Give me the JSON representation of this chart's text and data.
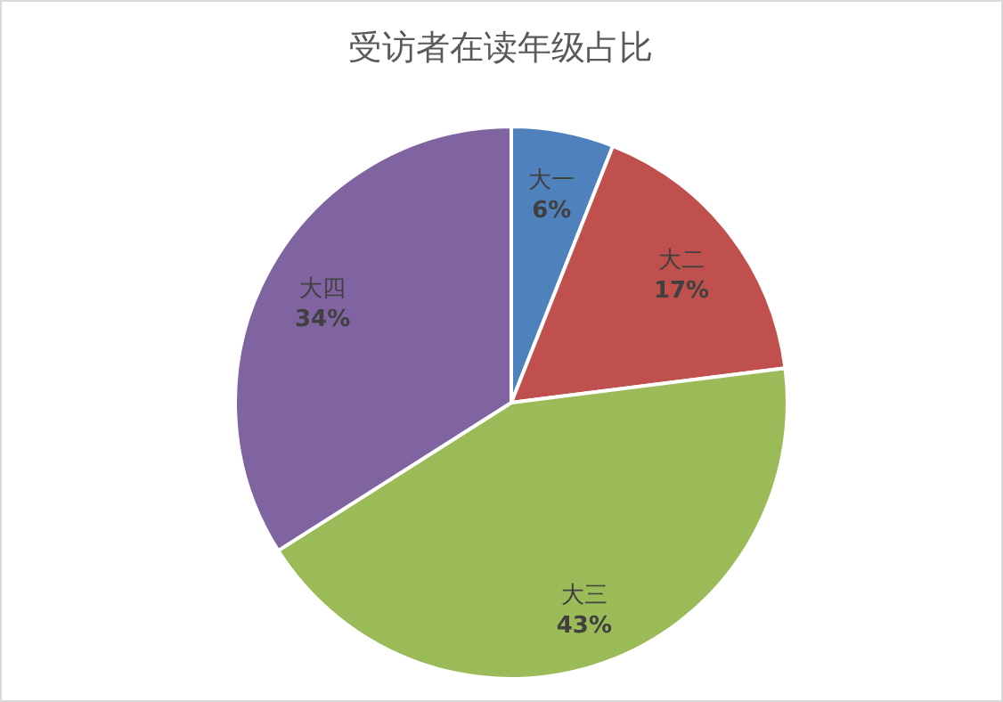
{
  "chart_data": {
    "type": "pie",
    "title": "受访者在读年级占比",
    "categories": [
      "大一",
      "大二",
      "大三",
      "大四"
    ],
    "values": [
      6,
      17,
      43,
      34
    ],
    "value_labels": [
      "6%",
      "17%",
      "43%",
      "34%"
    ],
    "colors": [
      "#4f81bd",
      "#c0504d",
      "#9bbb59",
      "#8064a2"
    ],
    "legend": false
  }
}
